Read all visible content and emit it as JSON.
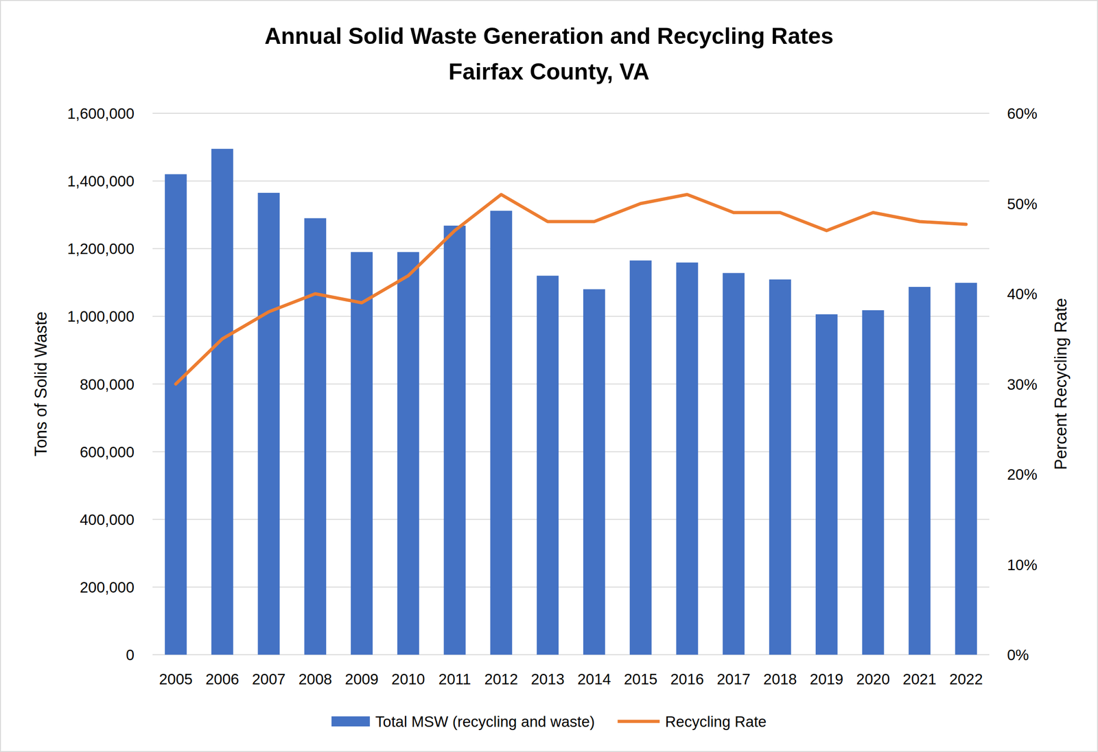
{
  "chart_data": {
    "type": "bar",
    "title": "Annual Solid Waste Generation and Recycling Rates",
    "subtitle": "Fairfax County, VA",
    "y_label": "Tons of Solid Waste",
    "y2_label": "Percent Recycling Rate",
    "categories": [
      "2005",
      "2006",
      "2007",
      "2008",
      "2009",
      "2010",
      "2011",
      "2012",
      "2013",
      "2014",
      "2015",
      "2016",
      "2017",
      "2018",
      "2019",
      "2020",
      "2021",
      "2022"
    ],
    "series": [
      {
        "name": "Total MSW (recycling and waste)",
        "type": "bar",
        "color": "#4472c4",
        "values": [
          1420000,
          1495000,
          1365000,
          1290000,
          1190000,
          1190000,
          1268000,
          1312000,
          1120000,
          1080000,
          1165000,
          1159000,
          1128000,
          1109000,
          1006000,
          1018000,
          1087000,
          1099000
        ]
      },
      {
        "name": "Recycling Rate",
        "type": "line",
        "color": "#ed7d31",
        "axis": "y2",
        "values": [
          30,
          35,
          38,
          40,
          39,
          42,
          47,
          51,
          48,
          48,
          50,
          51,
          49,
          49,
          47,
          49,
          48,
          47.7
        ]
      }
    ],
    "ylim": [
      0,
      1600000
    ],
    "yticks": [
      0,
      {
        "value": 200000,
        "label": "200,000"
      },
      {
        "value": 400000,
        "label": "400,000"
      },
      {
        "value": 600000,
        "label": "600,000"
      },
      {
        "value": 800000,
        "label": "800,000"
      },
      {
        "value": 1000000,
        "label": "1,000,000"
      },
      {
        "value": 1200000,
        "label": "1,200,000"
      },
      {
        "value": 1400000,
        "label": "1,400,000"
      },
      {
        "value": 1600000,
        "label": "1,600,000"
      }
    ],
    "y2lim": [
      0,
      60
    ],
    "y2ticks": [
      {
        "value": 0,
        "label": "0%"
      },
      {
        "value": 10,
        "label": "10%"
      },
      {
        "value": 20,
        "label": "20%"
      },
      {
        "value": 30,
        "label": "30%"
      },
      {
        "value": 40,
        "label": "40%"
      },
      {
        "value": 50,
        "label": "50%"
      },
      {
        "value": 60,
        "label": "60%"
      }
    ],
    "grid": true,
    "legend": "bottom"
  }
}
